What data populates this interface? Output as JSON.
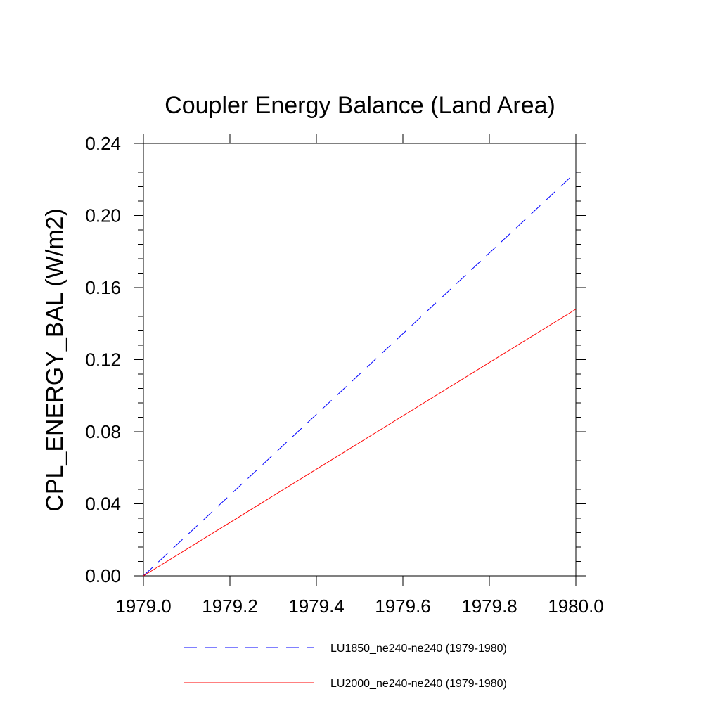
{
  "chart_data": {
    "type": "line",
    "title": "Coupler Energy Balance (Land Area)",
    "xlabel": "",
    "ylabel": "CPL_ENERGY_BAL  (W/m2)",
    "xlim": [
      1979.0,
      1980.0
    ],
    "ylim": [
      0.0,
      0.24
    ],
    "xticks": [
      "1979.0",
      "1979.2",
      "1979.4",
      "1979.6",
      "1979.8",
      "1980.0"
    ],
    "yticks": [
      "0.00",
      "0.04",
      "0.08",
      "0.12",
      "0.16",
      "0.20",
      "0.24"
    ],
    "grid": false,
    "legend_position": "bottom",
    "series": [
      {
        "name": "LU1850_ne240-ne240 (1979-1980)",
        "color": "#0000ff",
        "dash": "dashed",
        "x": [
          1979.0,
          1980.0
        ],
        "y": [
          0.0,
          0.224
        ]
      },
      {
        "name": "LU2000_ne240-ne240 (1979-1980)",
        "color": "#ff0000",
        "dash": "solid",
        "x": [
          1979.0,
          1980.0
        ],
        "y": [
          0.0,
          0.148
        ]
      }
    ]
  }
}
